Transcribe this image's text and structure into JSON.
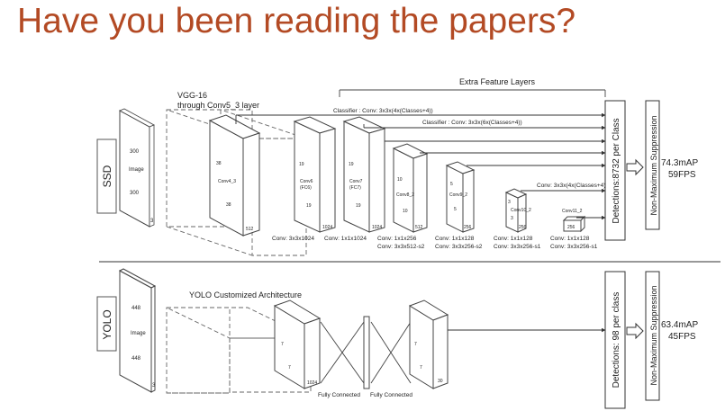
{
  "title": "Have you been reading the papers?",
  "ssd": {
    "label": "SSD",
    "image_top": "300",
    "image_label": "Image",
    "image_bottom": "300",
    "image_depth": "3",
    "vgg_line1": "VGG-16",
    "vgg_line2": "through Conv5_3 layer",
    "extra_layers": "Extra Feature Layers",
    "classifier1": "Classifier : Conv: 3x3x(4x(Classes+4))",
    "classifier2": "Classifier : Conv: 3x3x(6x(Classes+4))",
    "classifier3": "Conv: 3x3x(4x(Classes+4))",
    "blocks": {
      "conv4": {
        "h": "38",
        "name": "Conv4_3",
        "w": "38",
        "d": "512"
      },
      "conv6": {
        "h": "19",
        "name": "Conv6",
        "name2": "(FC6)",
        "w": "19",
        "d": "1024"
      },
      "conv7": {
        "h": "19",
        "name": "Conv7",
        "name2": "(FC7)",
        "w": "19",
        "d": "1024"
      },
      "conv8": {
        "h": "10",
        "name": "Conv8_2",
        "w": "10",
        "d": "512"
      },
      "conv9": {
        "h": "5",
        "name": "Conv9_2",
        "w": "5",
        "d": "256"
      },
      "conv10": {
        "h": "3",
        "name": "Conv10_2",
        "w": "3",
        "d": "256"
      },
      "conv11": {
        "name": "Conv11_2",
        "d": "256"
      }
    },
    "captions": {
      "c1": "Conv: 3x3x1024",
      "c2": "Conv: 1x1x1024",
      "c3a": "Conv: 1x1x256",
      "c3b": "Conv: 3x3x512-s2",
      "c4a": "Conv: 1x1x128",
      "c4b": "Conv: 3x3x256-s2",
      "c5a": "Conv: 1x1x128",
      "c5b": "Conv: 3x3x256-s1",
      "c6a": "Conv: 1x1x128",
      "c6b": "Conv: 3x3x256-s1"
    },
    "detections": "Detections:8732 per Class",
    "nms": "Non-Maximum Suppression",
    "map": "74.3mAP",
    "fps": "59FPS"
  },
  "yolo": {
    "label": "YOLO",
    "image_top": "448",
    "image_label": "Image",
    "image_bottom": "448",
    "image_depth": "3",
    "arch_label": "YOLO Customized Architecture",
    "block1": {
      "h": "7",
      "w": "7",
      "d": "1024"
    },
    "block2": {
      "h": "7",
      "w": "7",
      "d": "30"
    },
    "fc1": "Fully Connected",
    "fc2": "Fully Connected",
    "detections": "Detections: 98 per class",
    "nms": "Non-Maximum Suppression",
    "map": "63.4mAP",
    "fps": "45FPS"
  }
}
